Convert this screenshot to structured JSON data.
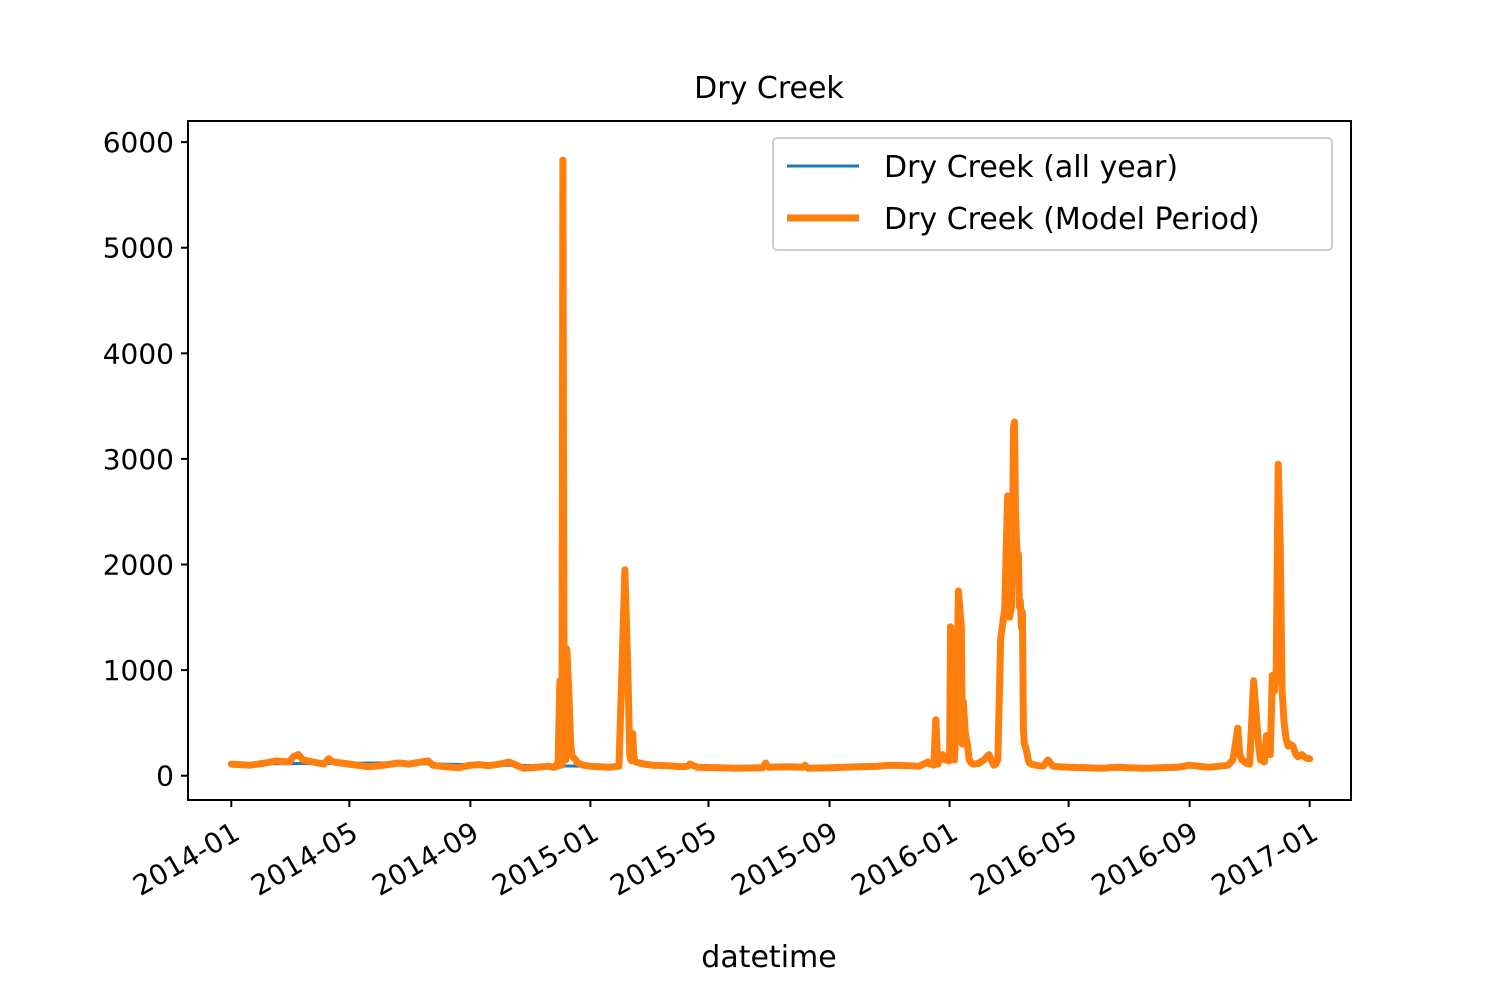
{
  "chart_data": {
    "type": "line",
    "title": "Dry Creek",
    "xlabel": "datetime",
    "ylabel": "",
    "ylim": [
      -230,
      6200
    ],
    "xlim": [
      "2013-11-18",
      "2017-02-12"
    ],
    "grid": false,
    "legend_position": "top-right",
    "x_ticks": [
      "2014-01",
      "2014-05",
      "2014-09",
      "2015-01",
      "2015-05",
      "2015-09",
      "2016-01",
      "2016-05",
      "2016-09",
      "2017-01"
    ],
    "y_ticks": [
      0,
      1000,
      2000,
      3000,
      4000,
      5000,
      6000
    ],
    "series": [
      {
        "name": "Dry Creek (all year)",
        "color": "#1f77b4",
        "x": [
          "2014-01-01",
          "2014-06-01",
          "2014-10-01",
          "2015-01-01"
        ],
        "y": [
          110,
          120,
          100,
          90
        ]
      },
      {
        "name": "Dry Creek (Model Period)",
        "color": "#ff7f0e",
        "x": [
          "2014-01-01",
          "2014-01-20",
          "2014-02-05",
          "2014-02-15",
          "2014-03-01",
          "2014-03-05",
          "2014-03-10",
          "2014-03-15",
          "2014-03-25",
          "2014-04-05",
          "2014-04-10",
          "2014-04-15",
          "2014-05-01",
          "2014-05-20",
          "2014-06-01",
          "2014-06-20",
          "2014-07-01",
          "2014-07-10",
          "2014-07-20",
          "2014-07-25",
          "2014-08-01",
          "2014-08-20",
          "2014-09-01",
          "2014-09-10",
          "2014-09-20",
          "2014-10-01",
          "2014-10-10",
          "2014-10-20",
          "2014-10-25",
          "2014-11-01",
          "2014-11-20",
          "2014-11-25",
          "2014-11-27",
          "2014-11-29",
          "2014-12-01",
          "2014-12-03",
          "2014-12-04",
          "2014-12-05",
          "2014-12-06",
          "2014-12-07",
          "2014-12-08",
          "2014-12-10",
          "2014-12-12",
          "2014-12-13",
          "2014-12-14",
          "2014-12-15",
          "2014-12-16",
          "2014-12-17",
          "2014-12-18",
          "2014-12-20",
          "2014-12-22",
          "2014-12-25",
          "2014-12-28",
          "2015-01-01",
          "2015-01-10",
          "2015-01-20",
          "2015-01-30",
          "2015-02-05",
          "2015-02-08",
          "2015-02-10",
          "2015-02-11",
          "2015-02-12",
          "2015-02-13",
          "2015-02-14",
          "2015-02-15",
          "2015-02-16",
          "2015-02-18",
          "2015-02-20",
          "2015-02-25",
          "2015-03-05",
          "2015-03-20",
          "2015-04-05",
          "2015-04-10",
          "2015-04-12",
          "2015-04-20",
          "2015-05-10",
          "2015-06-01",
          "2015-06-25",
          "2015-06-28",
          "2015-07-01",
          "2015-07-20",
          "2015-08-05",
          "2015-08-07",
          "2015-08-10",
          "2015-09-01",
          "2015-09-15",
          "2015-10-01",
          "2015-10-20",
          "2015-11-01",
          "2015-11-20",
          "2015-12-01",
          "2015-12-10",
          "2015-12-12",
          "2015-12-14",
          "2015-12-16",
          "2015-12-18",
          "2015-12-20",
          "2015-12-25",
          "2015-12-28",
          "2016-01-01",
          "2016-01-02",
          "2016-01-03",
          "2016-01-04",
          "2016-01-06",
          "2016-01-08",
          "2016-01-10",
          "2016-01-13",
          "2016-01-14",
          "2016-01-15",
          "2016-01-17",
          "2016-01-19",
          "2016-01-21",
          "2016-01-23",
          "2016-01-25",
          "2016-01-30",
          "2016-02-05",
          "2016-02-10",
          "2016-02-15",
          "2016-02-17",
          "2016-02-19",
          "2016-02-22",
          "2016-02-26",
          "2016-02-29",
          "2016-03-02",
          "2016-03-04",
          "2016-03-05",
          "2016-03-06",
          "2016-03-07",
          "2016-03-08",
          "2016-03-10",
          "2016-03-11",
          "2016-03-12",
          "2016-03-13",
          "2016-03-14",
          "2016-03-15",
          "2016-03-16",
          "2016-03-17",
          "2016-03-18",
          "2016-03-20",
          "2016-03-21",
          "2016-03-22",
          "2016-03-24",
          "2016-03-26",
          "2016-03-29",
          "2016-04-01",
          "2016-04-05",
          "2016-04-10",
          "2016-04-15",
          "2016-04-20",
          "2016-05-01",
          "2016-05-20",
          "2016-06-01",
          "2016-06-05",
          "2016-06-10",
          "2016-06-20",
          "2016-07-01",
          "2016-07-20",
          "2016-08-01",
          "2016-08-20",
          "2016-09-01",
          "2016-09-20",
          "2016-10-01",
          "2016-10-10",
          "2016-10-15",
          "2016-10-20",
          "2016-10-22",
          "2016-10-24",
          "2016-10-26",
          "2016-10-28",
          "2016-10-30",
          "2016-11-01",
          "2016-11-05",
          "2016-11-10",
          "2016-11-12",
          "2016-11-14",
          "2016-11-16",
          "2016-11-18",
          "2016-11-20",
          "2016-11-22",
          "2016-11-24",
          "2016-11-26",
          "2016-11-28",
          "2016-11-30",
          "2016-12-02",
          "2016-12-04",
          "2016-12-06",
          "2016-12-08",
          "2016-12-10",
          "2016-12-12",
          "2016-12-15",
          "2016-12-18",
          "2016-12-20",
          "2016-12-24",
          "2016-12-28",
          "2017-01-01"
        ],
        "y": [
          110,
          100,
          120,
          140,
          130,
          180,
          200,
          150,
          130,
          110,
          160,
          130,
          110,
          85,
          95,
          120,
          110,
          125,
          140,
          100,
          90,
          75,
          100,
          105,
          95,
          110,
          130,
          90,
          70,
          75,
          90,
          80,
          100,
          90,
          900,
          100,
          5830,
          1500,
          200,
          150,
          1200,
          800,
          300,
          200,
          180,
          170,
          160,
          150,
          130,
          120,
          110,
          100,
          95,
          90,
          85,
          80,
          90,
          1950,
          1000,
          200,
          150,
          140,
          400,
          200,
          150,
          130,
          125,
          120,
          110,
          100,
          95,
          85,
          90,
          110,
          80,
          75,
          70,
          75,
          120,
          80,
          85,
          80,
          100,
          70,
          75,
          80,
          85,
          90,
          100,
          95,
          90,
          130,
          110,
          120,
          100,
          530,
          110,
          200,
          150,
          140,
          1410,
          1300,
          500,
          150,
          600,
          1750,
          1400,
          300,
          700,
          400,
          300,
          150,
          120,
          110,
          115,
          150,
          200,
          100,
          110,
          150,
          1300,
          1580,
          2650,
          1500,
          1600,
          2200,
          3300,
          3350,
          2500,
          2000,
          2100,
          1600,
          1650,
          1400,
          1550,
          450,
          300,
          280,
          200,
          150,
          120,
          110,
          105,
          100,
          95,
          90,
          150,
          90,
          85,
          80,
          75,
          70,
          70,
          75,
          80,
          75,
          70,
          75,
          80,
          100,
          80,
          90,
          100,
          150,
          450,
          200,
          150,
          140,
          120,
          115,
          110,
          900,
          300,
          150,
          140,
          130,
          380,
          300,
          200,
          950,
          800,
          1000,
          2950,
          2200,
          800,
          500,
          350,
          280,
          300,
          280,
          200,
          180,
          200,
          170,
          160
        ]
      }
    ]
  }
}
